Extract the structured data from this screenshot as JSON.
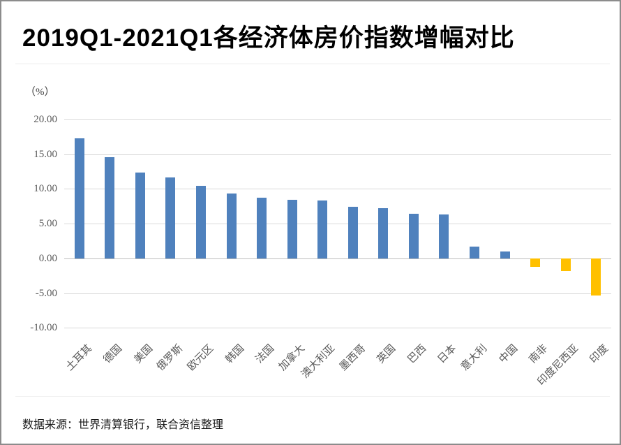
{
  "title": "2019Q1-2021Q1各经济体房价指数增幅对比",
  "footer": {
    "source_text": "数据来源：世界清算银行，联合资信整理"
  },
  "chart_data": {
    "type": "bar",
    "title": "2019Q1-2021Q1各经济体房价指数增幅对比",
    "unit_label": "（%）",
    "categories": [
      "土耳其",
      "德国",
      "美国",
      "俄罗斯",
      "欧元区",
      "韩国",
      "法国",
      "加拿大",
      "澳大利亚",
      "墨西哥",
      "英国",
      "巴西",
      "日本",
      "意大利",
      "中国",
      "南非",
      "印度尼西亚",
      "印度"
    ],
    "values": [
      17.3,
      14.6,
      12.4,
      11.7,
      10.4,
      9.3,
      8.7,
      8.4,
      8.3,
      7.4,
      7.2,
      6.4,
      6.3,
      1.7,
      1.0,
      -1.2,
      -1.8,
      -5.4
    ],
    "ylabel": "（%）",
    "xlabel": "",
    "ylim": [
      -10,
      20
    ],
    "yticks": [
      20,
      15,
      10,
      5,
      0,
      -5,
      -10
    ],
    "ytick_labels": [
      "20.00",
      "15.00",
      "10.00",
      "5.00",
      "0.00",
      "-5.00",
      "-10.00"
    ],
    "grid": true,
    "legend_position": "none",
    "colors": {
      "positive_bar": "#4F81BD",
      "negative_bar": "#FFC000",
      "gridline": "#D9D9D9",
      "zero_line": "#BDBDBD",
      "axis_text": "#595959"
    }
  }
}
